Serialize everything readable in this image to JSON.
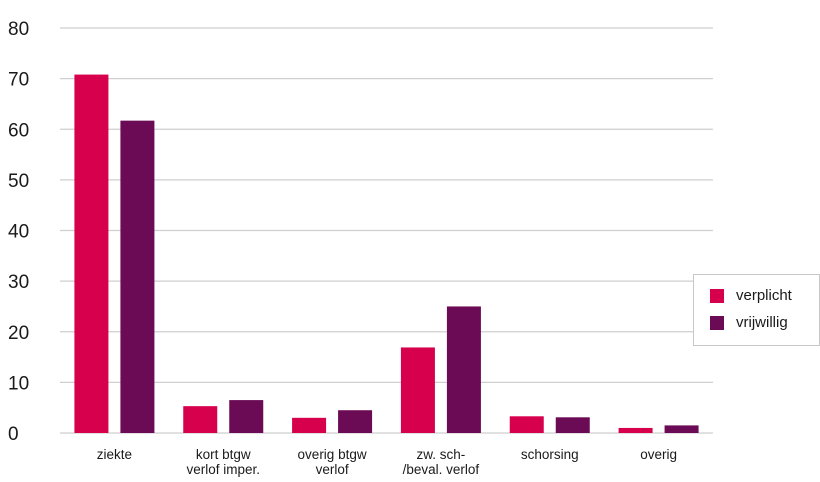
{
  "chart_data": {
    "type": "bar",
    "categories": [
      [
        "ziekte"
      ],
      [
        "kort btgw",
        "verlof imper."
      ],
      [
        "overig btgw",
        "verlof"
      ],
      [
        "zw. sch-",
        "/beval. verlof"
      ],
      [
        "schorsing"
      ],
      [
        "overig"
      ]
    ],
    "series": [
      {
        "name": "verplicht",
        "color": "#d6004c",
        "values": [
          70.8,
          5.3,
          3.0,
          16.9,
          3.3,
          1.0
        ]
      },
      {
        "name": "vrijwillig",
        "color": "#6b0a55",
        "values": [
          61.7,
          6.5,
          4.5,
          25.0,
          3.1,
          1.5
        ]
      }
    ],
    "ylim": [
      0,
      80
    ],
    "yticks": [
      "0",
      "10",
      "20",
      "30",
      "40",
      "50",
      "60",
      "70",
      "80"
    ],
    "grid": true,
    "legend_position": "right"
  }
}
